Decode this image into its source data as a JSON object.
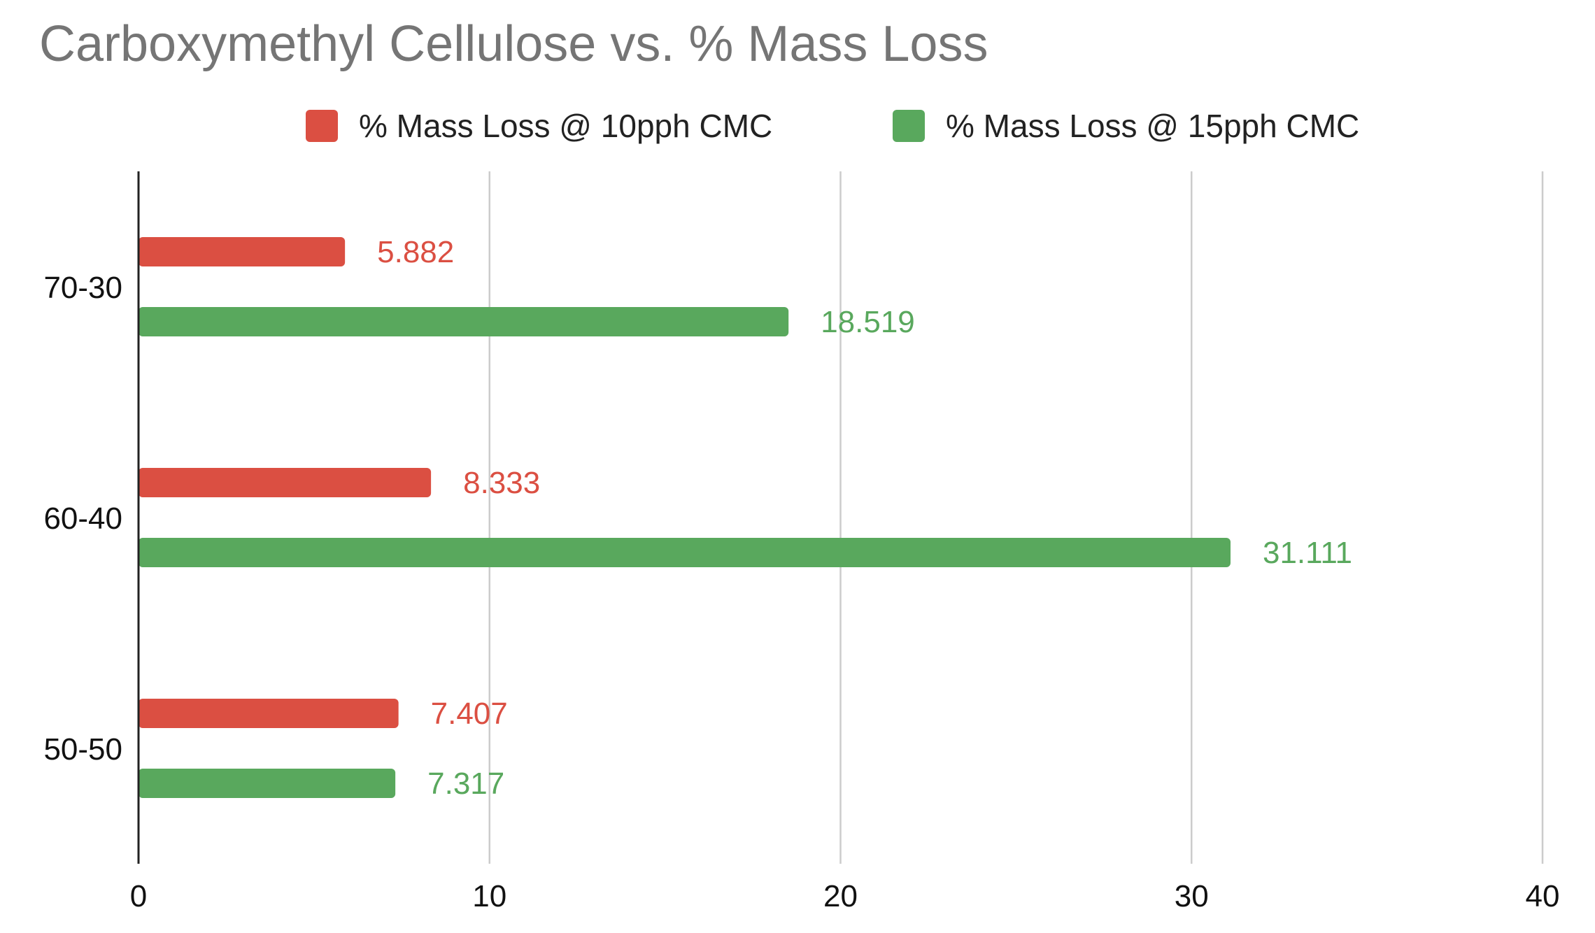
{
  "chart_data": {
    "type": "bar",
    "orientation": "horizontal",
    "title": "Carboxymethyl Cellulose vs. % Mass Loss",
    "categories": [
      "70-30",
      "60-40",
      "50-50"
    ],
    "series": [
      {
        "name": "% Mass Loss @ 10pph CMC",
        "color": "#DB4F42",
        "values": [
          5.882,
          8.333,
          7.407
        ],
        "labels": [
          "5.882",
          "8.333",
          "7.407"
        ]
      },
      {
        "name": "% Mass Loss @ 15pph CMC",
        "color": "#59A85D",
        "values": [
          18.519,
          31.111,
          7.317
        ],
        "labels": [
          "18.519",
          "31.111",
          "7.317"
        ]
      }
    ],
    "xlim": [
      0,
      40
    ],
    "xticks": [
      "0",
      "10",
      "20",
      "30",
      "40"
    ],
    "xlabel": "",
    "ylabel": "",
    "grid": "vertical",
    "legend_position": "top"
  }
}
